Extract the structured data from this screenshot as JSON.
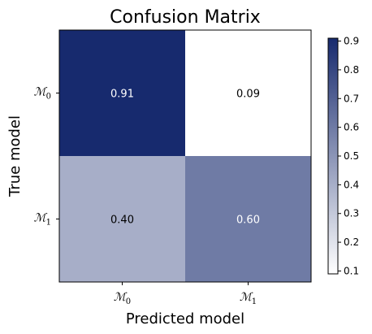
{
  "chart_data": {
    "type": "heatmap",
    "title": "Confusion Matrix",
    "xlabel": "Predicted model",
    "ylabel": "True model",
    "x_categories": [
      {
        "base": "ℳ",
        "sub": "0"
      },
      {
        "base": "ℳ",
        "sub": "1"
      }
    ],
    "y_categories": [
      {
        "base": "ℳ",
        "sub": "0"
      },
      {
        "base": "ℳ",
        "sub": "1"
      }
    ],
    "values": [
      [
        0.91,
        0.09
      ],
      [
        0.4,
        0.6
      ]
    ],
    "cell_labels": [
      [
        "0.91",
        "0.09"
      ],
      [
        "0.40",
        "0.60"
      ]
    ],
    "colorbar": {
      "min": 0.09,
      "max": 0.91,
      "ticks": [
        "0.1",
        "0.2",
        "0.3",
        "0.4",
        "0.5",
        "0.6",
        "0.7",
        "0.8",
        "0.9"
      ],
      "low_color": "#ffffff",
      "high_color": "#172a6e"
    }
  }
}
